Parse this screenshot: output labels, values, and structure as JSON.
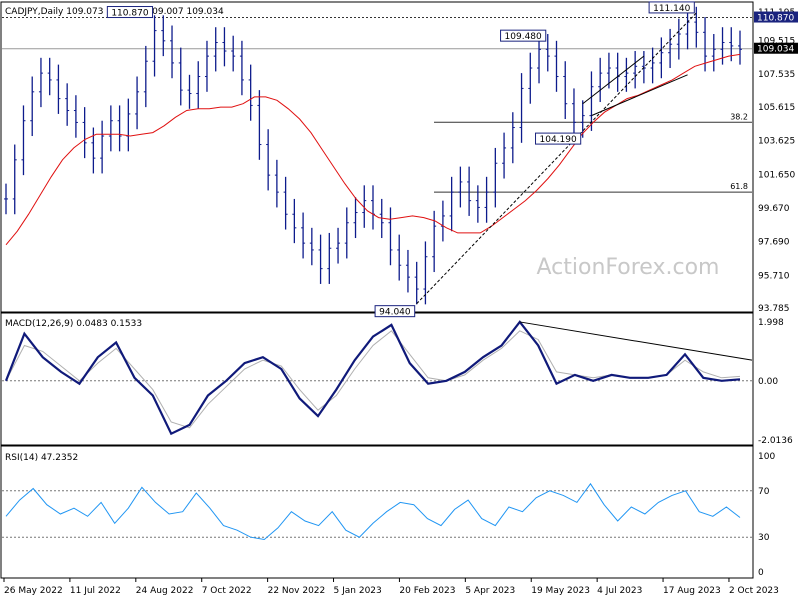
{
  "chart_data": [
    {
      "type": "candlestick",
      "name": "price",
      "header": "CADJPY,Daily  109.073 109.115 109.007 109.034",
      "watermark": "ActionForex.com",
      "y_ticks": [
        111.195,
        109.515,
        107.535,
        105.615,
        103.625,
        101.65,
        99.67,
        97.69,
        95.71,
        93.785
      ],
      "ylim": [
        93.785,
        111.195
      ],
      "current_price": 109.034,
      "level_line": 110.87,
      "fib_levels": [
        {
          "label": "38.2",
          "value": 104.71
        },
        {
          "label": "61.8",
          "value": 100.6
        }
      ],
      "annotations": [
        {
          "label": "110.870",
          "date_index": 17
        },
        {
          "label": "109.480",
          "date_index": 62
        },
        {
          "label": "111.140",
          "date_index": 79
        },
        {
          "label": "104.190",
          "date_index": 66
        },
        {
          "label": "94.040",
          "date_index": 47
        }
      ],
      "close": [
        100.2,
        102.5,
        104.8,
        106.5,
        107.6,
        107.2,
        106.1,
        105.4,
        104.7,
        103.5,
        102.6,
        103.9,
        104.8,
        103.9,
        105.2,
        106.5,
        108.3,
        110.1,
        109.5,
        108.2,
        106.6,
        106.4,
        107.4,
        108.6,
        109.4,
        108.9,
        108.6,
        107.2,
        105.7,
        103.4,
        101.6,
        100.6,
        99.3,
        98.5,
        97.6,
        97.2,
        96.1,
        97.3,
        97.6,
        98.8,
        99.4,
        100.1,
        99.3,
        98.8,
        97.2,
        96.3,
        95.6,
        94.9,
        96.8,
        98.6,
        99.2,
        100.6,
        101.2,
        100.1,
        99.7,
        100.6,
        102.3,
        103.2,
        104.4,
        106.7,
        107.9,
        109.0,
        108.6,
        107.4,
        105.8,
        104.7,
        105.1,
        106.8,
        107.6,
        107.9,
        107.4,
        107.6,
        108.0,
        107.9,
        108.2,
        108.8,
        109.3,
        109.9,
        110.6,
        110.0,
        108.6,
        109.0,
        109.4,
        109.2,
        109.0
      ],
      "ma": [
        97.5,
        98.3,
        99.3,
        100.4,
        101.5,
        102.5,
        103.2,
        103.7,
        104.0,
        104.0,
        104.0,
        103.9,
        104.0,
        104.1,
        104.5,
        105.0,
        105.4,
        105.5,
        105.5,
        105.6,
        105.6,
        105.8,
        106.2,
        106.2,
        106.0,
        105.5,
        104.9,
        104.1,
        103.1,
        102.1,
        101.1,
        100.2,
        99.5,
        99.1,
        99.0,
        99.1,
        99.2,
        99.1,
        98.9,
        98.5,
        98.2,
        98.2,
        98.2,
        98.6,
        99.1,
        99.6,
        100.1,
        100.7,
        101.4,
        102.2,
        103.1,
        104.0,
        104.7,
        105.3,
        105.7,
        106.1,
        106.3,
        106.6,
        106.9,
        107.2,
        107.6,
        108.0,
        108.2,
        108.4,
        108.6,
        108.7
      ],
      "x_labels": [
        "26 May 2022",
        "11 Jul 2022",
        "24 Aug 2022",
        "7 Oct 2022",
        "22 Nov 2022",
        "5 Jan 2023",
        "20 Feb 2023",
        "5 Apr 2023",
        "19 May 2023",
        "4 Jul 2023",
        "17 Aug 2023",
        "2 Oct 2023"
      ]
    },
    {
      "type": "line",
      "name": "macd",
      "header": "MACD(12,26,9) 0.0483 0.1533",
      "y_ticks": [
        1.998,
        0.0,
        -2.0136
      ],
      "ylim": [
        -2.0136,
        1.998
      ],
      "macd": [
        0.0,
        1.6,
        0.8,
        0.3,
        -0.1,
        0.8,
        1.3,
        0.1,
        -0.5,
        -1.8,
        -1.5,
        -0.5,
        0.0,
        0.6,
        0.8,
        0.4,
        -0.6,
        -1.2,
        -0.3,
        0.7,
        1.5,
        1.9,
        0.6,
        -0.1,
        0.0,
        0.3,
        0.8,
        1.2,
        2.0,
        1.2,
        -0.1,
        0.2,
        0.0,
        0.2,
        0.1,
        0.1,
        0.2,
        0.9,
        0.1,
        0.0,
        0.05
      ],
      "signal": [
        0.0,
        1.2,
        1.0,
        0.5,
        0.0,
        0.6,
        1.1,
        0.4,
        -0.3,
        -1.4,
        -1.6,
        -0.8,
        -0.2,
        0.4,
        0.7,
        0.5,
        -0.3,
        -1.0,
        -0.5,
        0.4,
        1.2,
        1.7,
        0.9,
        0.1,
        0.0,
        0.2,
        0.7,
        1.1,
        1.7,
        1.4,
        0.3,
        0.2,
        0.1,
        0.2,
        0.1,
        0.1,
        0.2,
        0.7,
        0.3,
        0.1,
        0.15
      ]
    },
    {
      "type": "line",
      "name": "rsi",
      "header": "RSI(14) 47.2352",
      "y_ticks": [
        100,
        70,
        30,
        0
      ],
      "ylim": [
        0,
        100
      ],
      "rsi": [
        48,
        62,
        72,
        58,
        50,
        55,
        48,
        60,
        42,
        55,
        73,
        60,
        50,
        52,
        68,
        55,
        40,
        36,
        30,
        28,
        38,
        52,
        44,
        40,
        52,
        36,
        30,
        42,
        52,
        60,
        58,
        46,
        40,
        54,
        62,
        46,
        40,
        56,
        52,
        64,
        70,
        66,
        60,
        76,
        58,
        44,
        56,
        50,
        60,
        66,
        70,
        52,
        48,
        56,
        47
      ]
    }
  ]
}
